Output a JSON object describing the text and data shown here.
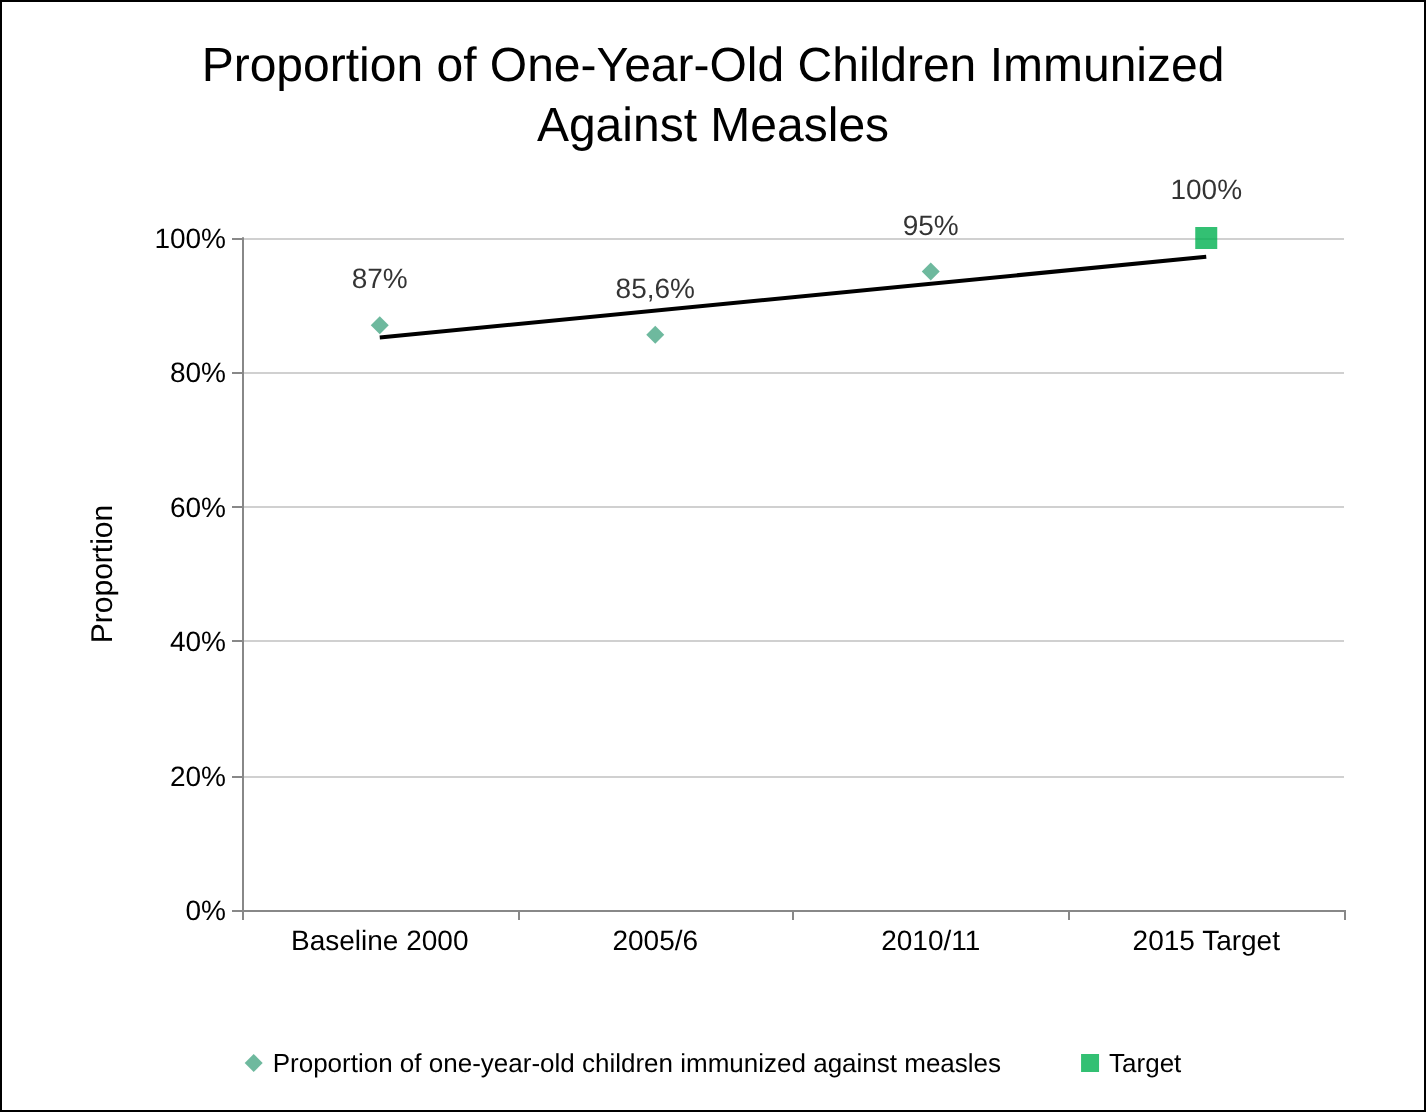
{
  "chart_data": {
    "type": "scatter",
    "title": "Proportion of One-Year-Old Children Immunized\nAgainst Measles",
    "ylabel": "Proportion",
    "categories": [
      "Baseline 2000",
      "2005/6",
      "2010/11",
      "2015 Target"
    ],
    "series": [
      {
        "name": "Proportion of one-year-old children immunized against measles",
        "marker": "diamond",
        "color": "#4aa886",
        "x": [
          "Baseline 2000",
          "2005/6",
          "2010/11"
        ],
        "values": [
          87,
          85.6,
          95
        ],
        "value_labels": [
          "87%",
          "85,6%",
          "95%"
        ]
      },
      {
        "name": "Target",
        "marker": "square",
        "color": "#00b050",
        "x": [
          "2015 Target"
        ],
        "values": [
          100
        ],
        "value_labels": [
          "100%"
        ]
      },
      {
        "type": "line",
        "marker": "none",
        "color": "#000000",
        "x": [
          "Baseline 2000",
          "2015 Target"
        ],
        "values": [
          85.2,
          97.2
        ]
      }
    ],
    "ylim": [
      0,
      100
    ],
    "yticks": [
      {
        "value": 0,
        "label": "0%"
      },
      {
        "value": 20,
        "label": "20%"
      },
      {
        "value": 40,
        "label": "40%"
      },
      {
        "value": 60,
        "label": "60%"
      },
      {
        "value": 80,
        "label": "80%"
      },
      {
        "value": 100,
        "label": "100%"
      }
    ],
    "grid": "y",
    "legend": "bottom"
  }
}
